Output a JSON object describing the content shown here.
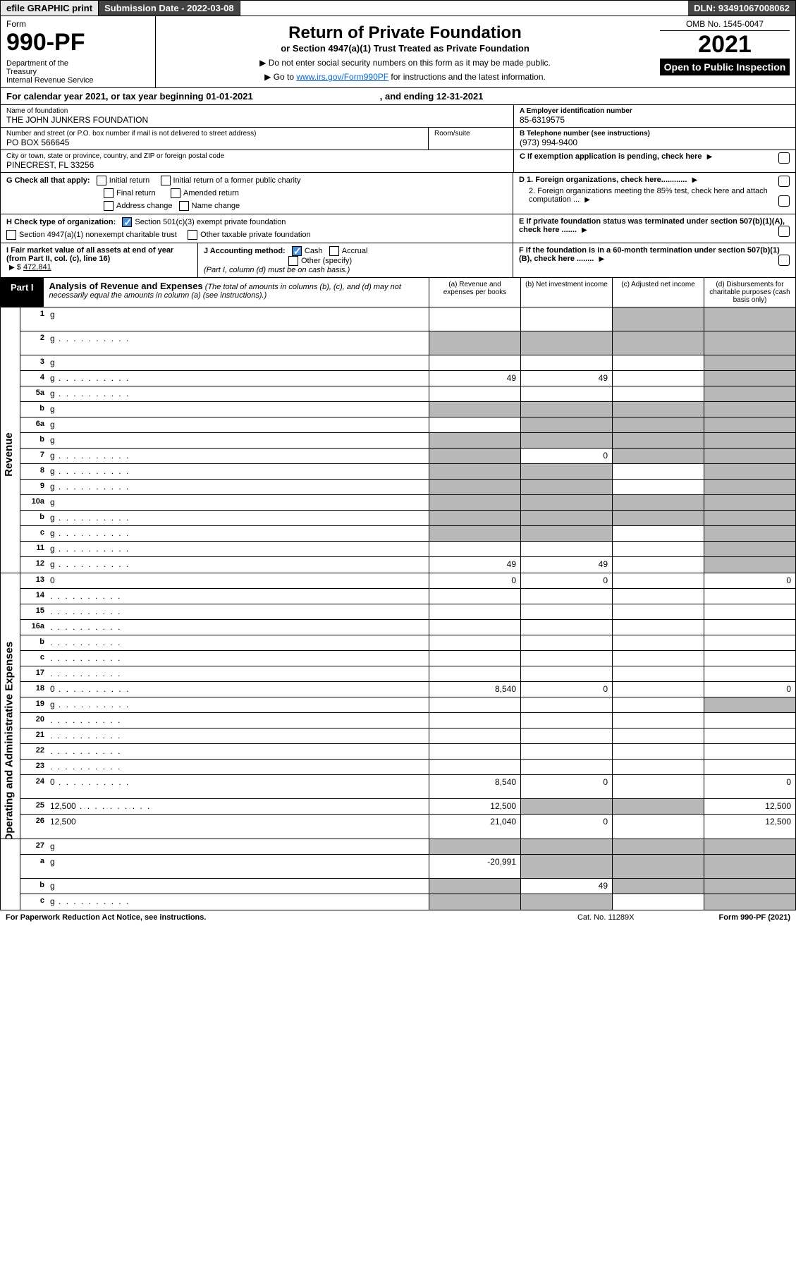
{
  "topbar": {
    "efile": "efile GRAPHIC print",
    "subdate_lbl": "Submission Date - 2022-03-08",
    "dln": "DLN: 93491067008062"
  },
  "header": {
    "form_word": "Form",
    "form_no": "990-PF",
    "dept": "Department of the Treasury\nInternal Revenue Service",
    "title": "Return of Private Foundation",
    "subtitle": "or Section 4947(a)(1) Trust Treated as Private Foundation",
    "bullet1": "▶ Do not enter social security numbers on this form as it may be made public.",
    "bullet2_pre": "▶ Go to ",
    "bullet2_link": "www.irs.gov/Form990PF",
    "bullet2_post": " for instructions and the latest information.",
    "omb": "OMB No. 1545-0047",
    "year": "2021",
    "inspection": "Open to Public Inspection"
  },
  "calyear": {
    "text_pre": "For calendar year 2021, or tax year beginning ",
    "begin": "01-01-2021",
    "mid": ", and ending ",
    "end": "12-31-2021"
  },
  "entity": {
    "name_lbl": "Name of foundation",
    "name": "THE JOHN JUNKERS FOUNDATION",
    "addr_lbl": "Number and street (or P.O. box number if mail is not delivered to street address)",
    "addr": "PO BOX 566645",
    "room_lbl": "Room/suite",
    "room": "",
    "city_lbl": "City or town, state or province, country, and ZIP or foreign postal code",
    "city": "PINECREST, FL  33256",
    "A_lbl": "A Employer identification number",
    "A_val": "85-6319575",
    "B_lbl": "B Telephone number (see instructions)",
    "B_val": "(973) 994-9400",
    "C_lbl": "C If exemption application is pending, check here"
  },
  "G": {
    "lbl": "G Check all that apply:",
    "initial": "Initial return",
    "initial_former": "Initial return of a former public charity",
    "final": "Final return",
    "amended": "Amended return",
    "addr_change": "Address change",
    "name_change": "Name change"
  },
  "D": {
    "d1": "D 1. Foreign organizations, check here............",
    "d2": "2. Foreign organizations meeting the 85% test, check here and attach computation ..."
  },
  "H": {
    "lbl": "H Check type of organization:",
    "opt1": "Section 501(c)(3) exempt private foundation",
    "opt2": "Section 4947(a)(1) nonexempt charitable trust",
    "opt3": "Other taxable private foundation"
  },
  "E": {
    "lbl": "E  If private foundation status was terminated under section 507(b)(1)(A), check here ......."
  },
  "I": {
    "lbl": "I Fair market value of all assets at end of year (from Part II, col. (c), line 16)",
    "val": "472,841"
  },
  "J": {
    "lbl": "J Accounting method:",
    "cash": "Cash",
    "accrual": "Accrual",
    "other": "Other (specify)",
    "note": "(Part I, column (d) must be on cash basis.)"
  },
  "F": {
    "lbl": "F  If the foundation is in a 60-month termination under section 507(b)(1)(B), check here ........"
  },
  "partI": {
    "tag": "Part I",
    "title": "Analysis of Revenue and Expenses",
    "note": "(The total of amounts in columns (b), (c), and (d) may not necessarily equal the amounts in column (a) (see instructions).)",
    "col_a": "(a)  Revenue and expenses per books",
    "col_b": "(b)  Net investment income",
    "col_c": "(c)  Adjusted net income",
    "col_d": "(d)  Disbursements for charitable purposes (cash basis only)"
  },
  "sections": {
    "revenue_label": "Revenue",
    "expenses_label": "Operating and Administrative Expenses"
  },
  "rows": [
    {
      "n": "1",
      "d": "g",
      "a": "",
      "b": "",
      "c": "g",
      "tall": true
    },
    {
      "n": "2",
      "d": "g",
      "a": "g",
      "b": "g",
      "c": "g",
      "tall": true,
      "dots": true
    },
    {
      "n": "3",
      "d": "g",
      "a": "",
      "b": "",
      "c": ""
    },
    {
      "n": "4",
      "d": "g",
      "a": "49",
      "b": "49",
      "c": "",
      "dots": true
    },
    {
      "n": "5a",
      "d": "g",
      "a": "",
      "b": "",
      "c": "",
      "dots": true
    },
    {
      "n": "b",
      "d": "g",
      "a": "g",
      "b": "g",
      "c": "g"
    },
    {
      "n": "6a",
      "d": "g",
      "a": "",
      "b": "g",
      "c": "g"
    },
    {
      "n": "b",
      "d": "g",
      "a": "g",
      "b": "g",
      "c": "g"
    },
    {
      "n": "7",
      "d": "g",
      "a": "g",
      "b": "0",
      "c": "g",
      "dots": true
    },
    {
      "n": "8",
      "d": "g",
      "a": "g",
      "b": "g",
      "c": "",
      "dots": true
    },
    {
      "n": "9",
      "d": "g",
      "a": "g",
      "b": "g",
      "c": "",
      "dots": true
    },
    {
      "n": "10a",
      "d": "g",
      "a": "g",
      "b": "g",
      "c": "g"
    },
    {
      "n": "b",
      "d": "g",
      "a": "g",
      "b": "g",
      "c": "g",
      "dots": true
    },
    {
      "n": "c",
      "d": "g",
      "a": "g",
      "b": "g",
      "c": "",
      "dots": true
    },
    {
      "n": "11",
      "d": "g",
      "a": "",
      "b": "",
      "c": "",
      "dots": true
    },
    {
      "n": "12",
      "d": "g",
      "a": "49",
      "b": "49",
      "c": "",
      "dots": true
    }
  ],
  "exp_rows": [
    {
      "n": "13",
      "d": "0",
      "a": "0",
      "b": "0",
      "c": ""
    },
    {
      "n": "14",
      "d": "",
      "a": "",
      "b": "",
      "c": "",
      "dots": true
    },
    {
      "n": "15",
      "d": "",
      "a": "",
      "b": "",
      "c": "",
      "dots": true
    },
    {
      "n": "16a",
      "d": "",
      "a": "",
      "b": "",
      "c": "",
      "dots": true
    },
    {
      "n": "b",
      "d": "",
      "a": "",
      "b": "",
      "c": "",
      "dots": true
    },
    {
      "n": "c",
      "d": "",
      "a": "",
      "b": "",
      "c": "",
      "dots": true
    },
    {
      "n": "17",
      "d": "",
      "a": "",
      "b": "",
      "c": "",
      "dots": true
    },
    {
      "n": "18",
      "d": "0",
      "a": "8,540",
      "b": "0",
      "c": "",
      "dots": true
    },
    {
      "n": "19",
      "d": "g",
      "a": "",
      "b": "",
      "c": "",
      "dots": true
    },
    {
      "n": "20",
      "d": "",
      "a": "",
      "b": "",
      "c": "",
      "dots": true
    },
    {
      "n": "21",
      "d": "",
      "a": "",
      "b": "",
      "c": "",
      "dots": true
    },
    {
      "n": "22",
      "d": "",
      "a": "",
      "b": "",
      "c": "",
      "dots": true
    },
    {
      "n": "23",
      "d": "",
      "a": "",
      "b": "",
      "c": "",
      "dots": true
    },
    {
      "n": "24",
      "d": "0",
      "a": "8,540",
      "b": "0",
      "c": "",
      "dots": true,
      "tall": true
    },
    {
      "n": "25",
      "d": "12,500",
      "a": "12,500",
      "b": "g",
      "c": "g",
      "dots": true
    },
    {
      "n": "26",
      "d": "12,500",
      "a": "21,040",
      "b": "0",
      "c": "",
      "tall": true
    }
  ],
  "bottom_rows": [
    {
      "n": "27",
      "d": "g",
      "a": "g",
      "b": "g",
      "c": "g"
    },
    {
      "n": "a",
      "d": "g",
      "a": "-20,991",
      "b": "g",
      "c": "g",
      "tall": true
    },
    {
      "n": "b",
      "d": "g",
      "a": "g",
      "b": "49",
      "c": "g"
    },
    {
      "n": "c",
      "d": "g",
      "a": "g",
      "b": "g",
      "c": "",
      "dots": true
    }
  ],
  "footer": {
    "left": "For Paperwork Reduction Act Notice, see instructions.",
    "mid": "Cat. No. 11289X",
    "right": "Form 990-PF (2021)"
  }
}
